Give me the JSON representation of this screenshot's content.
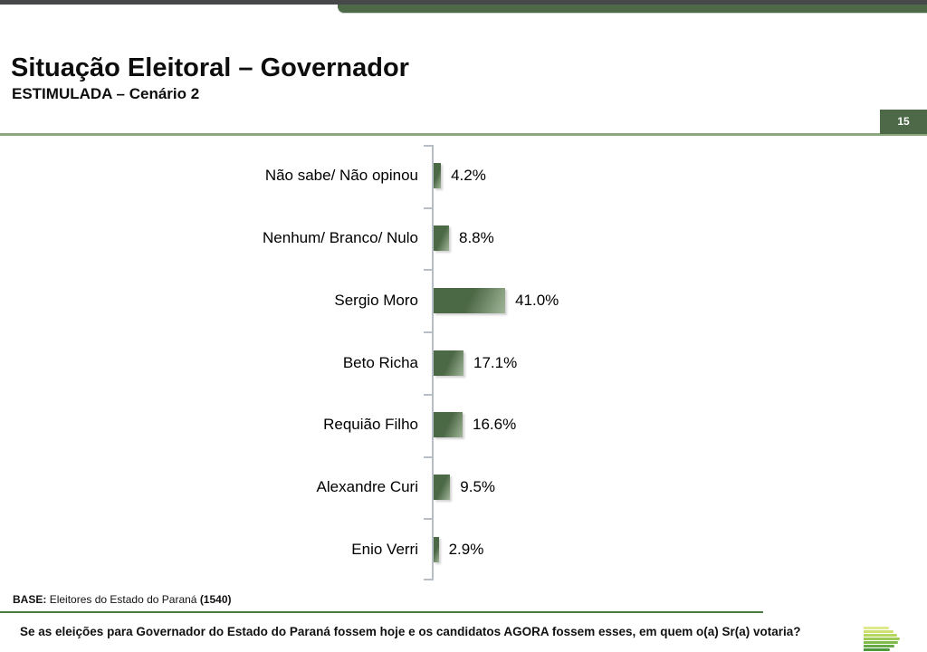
{
  "header": {
    "title": "Situação Eleitoral – Governador",
    "subtitle": "ESTIMULADA – Cenário 2",
    "page_number": "15"
  },
  "chart_data": {
    "type": "bar",
    "orientation": "horizontal",
    "title": "Situação Eleitoral – Governador (ESTIMULADA – Cenário 2)",
    "categories": [
      "Não sabe/ Não opinou",
      "Nenhum/ Branco/ Nulo",
      "Sergio Moro",
      "Beto Richa",
      "Requião Filho",
      "Alexandre Curi",
      "Enio Verri"
    ],
    "values": [
      4.2,
      8.8,
      41.0,
      17.1,
      16.6,
      9.5,
      2.9
    ],
    "value_labels": [
      "4.2%",
      "8.8%",
      "41.0%",
      "17.1%",
      "16.6%",
      "9.5%",
      "2.9%"
    ],
    "unit": "%",
    "gridlines": false,
    "legend": false,
    "bar_gradient": [
      "#4c6946",
      "#a2b699"
    ],
    "axis_color": "#b7bec6"
  },
  "footer": {
    "base_label": "BASE:",
    "base_text": "Eleitores do Estado do Paraná",
    "base_count": "(1540)",
    "question": "Se as eleições para Governador do Estado do Paraná fossem hoje e os candidatos AGORA fossem esses, em quem o(a) Sr(a) votaria?"
  },
  "theme": {
    "banner_green": "#4d6947",
    "banner_gray": "#46484a",
    "header_divider_green": "#8ba77b",
    "footer_divider_green": "#4a7c3f"
  },
  "logo": {
    "stripe_colors": [
      "#dfe98b",
      "#cde071",
      "#b6d75f",
      "#9cca54",
      "#82bb4c",
      "#65aa44",
      "#4d9a3d"
    ],
    "stripe_widths": [
      28,
      33,
      37,
      40,
      38,
      34,
      29
    ]
  }
}
